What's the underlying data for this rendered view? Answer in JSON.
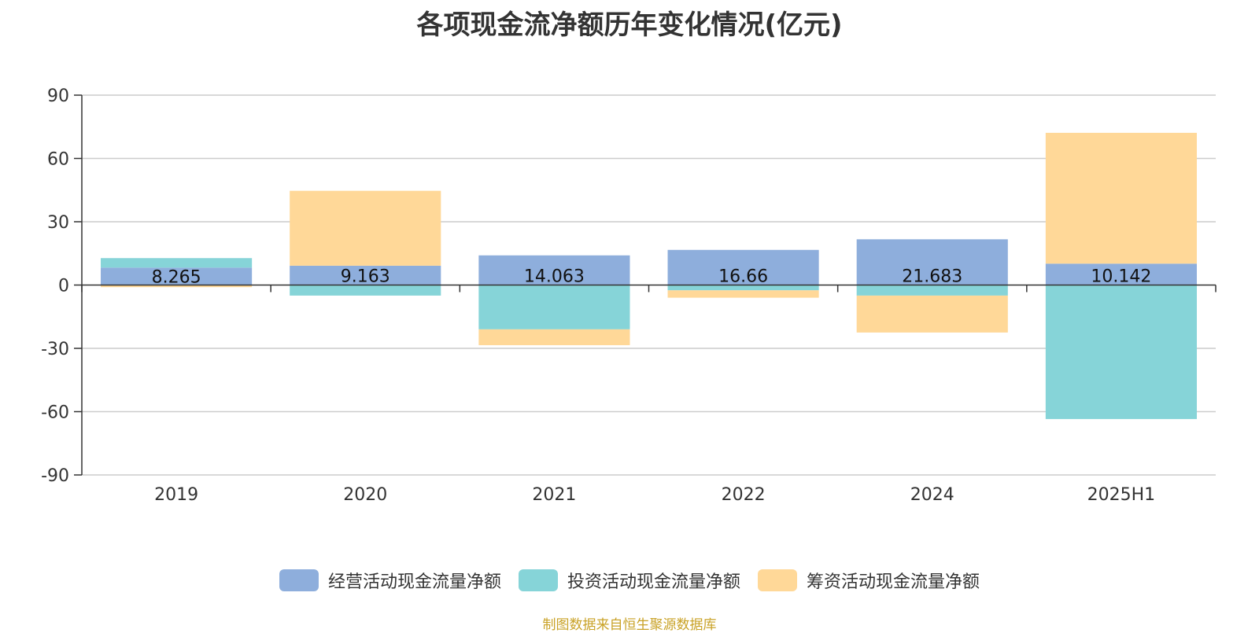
{
  "chart_data": {
    "type": "bar",
    "stacked": true,
    "title": "各项现金流净额历年变化情况(亿元)",
    "categories": [
      "2019",
      "2020",
      "2021",
      "2022",
      "2024",
      "2025H1"
    ],
    "series": [
      {
        "name": "经营活动现金流量净额",
        "color": "#8eaedc",
        "values": [
          8.265,
          9.163,
          14.063,
          16.66,
          21.683,
          10.142
        ],
        "labels": [
          "8.265",
          "9.163",
          "14.063",
          "16.66",
          "21.683",
          "10.142"
        ]
      },
      {
        "name": "投资活动现金流量净额",
        "color": "#86d4d8",
        "values": [
          4.5,
          -5.0,
          -21.0,
          -2.5,
          -5.0,
          -63.5
        ]
      },
      {
        "name": "筹资活动现金流量净额",
        "color": "#ffd898",
        "values": [
          -1.0,
          35.5,
          -7.5,
          -3.5,
          -17.5,
          62.0
        ]
      }
    ],
    "ylim": [
      -90,
      90
    ],
    "yticks": [
      90,
      60,
      30,
      0,
      -30,
      -60,
      -90
    ],
    "ytick_labels": [
      "90",
      "60",
      "30",
      "0",
      "-30",
      "-60",
      "-90"
    ],
    "grid": true,
    "legend_position": "bottom"
  },
  "source_note": "制图数据来自恒生聚源数据库"
}
